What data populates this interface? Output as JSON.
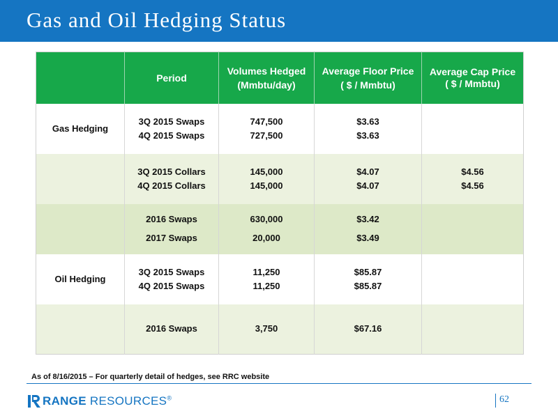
{
  "slide": {
    "title": "Gas and Oil Hedging Status",
    "footnote": "As of 8/16/2015 – For quarterly detail of hedges, see RRC website",
    "page_number": "62",
    "colors": {
      "header": "#1575c2",
      "table_header": "#17a84a",
      "row_light": "#ecf2df",
      "row_mid": "#dde9c8"
    }
  },
  "logo": {
    "bold": "RANGE",
    "rest": " RESOURCES",
    "mark": "®",
    "icon": "range-resources-r-icon"
  },
  "table": {
    "headers": {
      "section": "",
      "period": "Period",
      "volumes_line1": "Volumes Hedged",
      "volumes_line2": "(Mmbtu/day)",
      "floor_line1": "Average Floor Price",
      "floor_line2": "( $ / Mmbtu)",
      "cap_line1": "Average Cap Price",
      "cap_line2": "( $ / Mmbtu)"
    },
    "rows": [
      {
        "section": "Gas Hedging",
        "period": [
          "3Q 2015 Swaps",
          "4Q 2015 Swaps"
        ],
        "volumes": [
          "747,500",
          "727,500"
        ],
        "floor": [
          "$3.63",
          "$3.63"
        ],
        "cap": []
      },
      {
        "section": "",
        "period": [
          "3Q 2015 Collars",
          "4Q 2015 Collars"
        ],
        "volumes": [
          "145,000",
          "145,000"
        ],
        "floor": [
          "$4.07",
          "$4.07"
        ],
        "cap": [
          "$4.56",
          "$4.56"
        ]
      },
      {
        "section": "",
        "period": [
          "2016 Swaps",
          "2017 Swaps"
        ],
        "volumes": [
          "630,000",
          "20,000"
        ],
        "floor": [
          "$3.42",
          "$3.49"
        ],
        "cap": []
      },
      {
        "section": "Oil Hedging",
        "period": [
          "3Q 2015 Swaps",
          "4Q 2015 Swaps"
        ],
        "volumes": [
          "11,250",
          "11,250"
        ],
        "floor": [
          "$85.87",
          "$85.87"
        ],
        "cap": []
      },
      {
        "section": "",
        "period": [
          "2016 Swaps"
        ],
        "volumes": [
          "3,750"
        ],
        "floor": [
          "$67.16"
        ],
        "cap": []
      }
    ]
  }
}
